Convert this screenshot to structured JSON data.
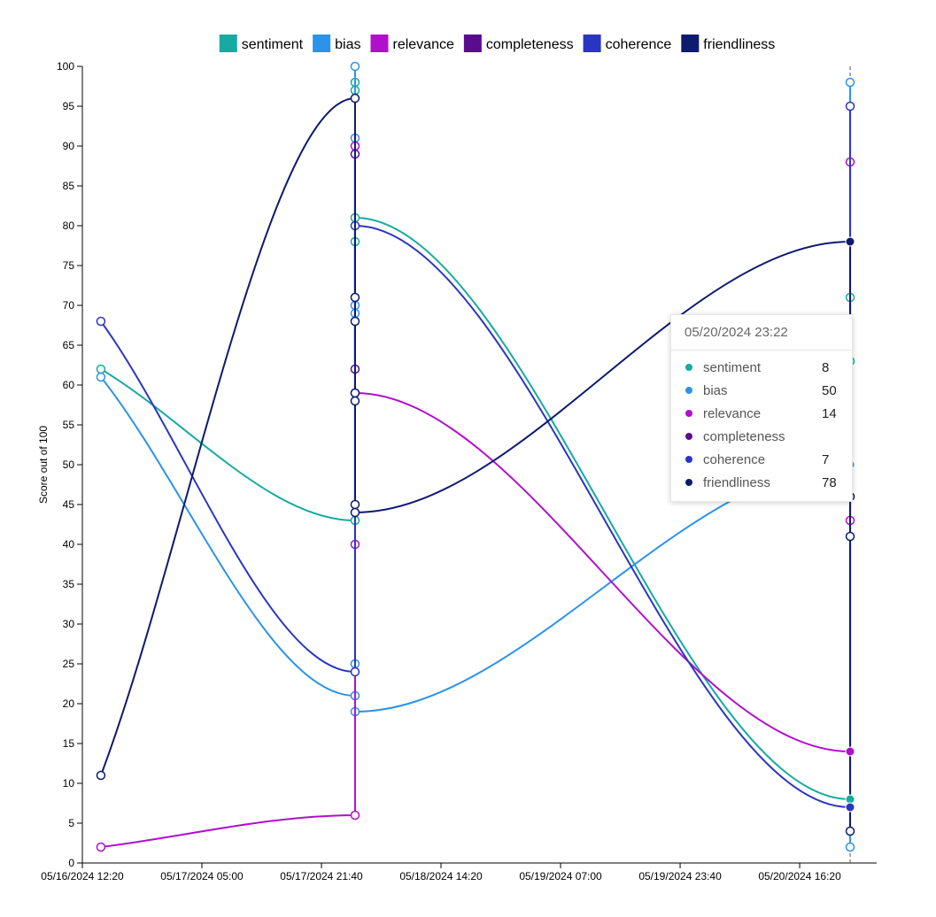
{
  "chart_data": {
    "type": "line",
    "y_label": "Score out of 100",
    "xlim": [
      "05/16/2024 12:20",
      "05/21/2024 03:04"
    ],
    "xticks": [
      "05/16/2024 12:20",
      "05/17/2024 05:00",
      "05/17/2024 21:40",
      "05/18/2024 14:20",
      "05/19/2024 07:00",
      "05/19/2024 23:40",
      "05/20/2024 16:20"
    ],
    "ylim": [
      0,
      100
    ],
    "yticks": [
      0,
      5,
      10,
      15,
      20,
      25,
      30,
      35,
      40,
      45,
      50,
      55,
      60,
      65,
      70,
      75,
      80,
      85,
      90,
      95,
      100
    ],
    "legend": "top",
    "series": [
      {
        "name": "sentiment",
        "color": "#17aaa0",
        "x": [
          "05/16/2024 14:55",
          "05/18/2024 02:21",
          "05/18/2024 02:21",
          "05/18/2024 02:21",
          "05/18/2024 02:21",
          "05/18/2024 02:21",
          "05/20/2024 23:22",
          "05/20/2024 23:22",
          "05/20/2024 23:22"
        ],
        "values": [
          62,
          43,
          78,
          97,
          98,
          81,
          8,
          71,
          63
        ]
      },
      {
        "name": "bias",
        "color": "#2b93ea",
        "x": [
          "05/16/2024 14:55",
          "05/18/2024 02:21",
          "05/18/2024 02:21",
          "05/18/2024 02:21",
          "05/18/2024 02:21",
          "05/18/2024 02:21",
          "05/18/2024 02:21",
          "05/18/2024 02:21",
          "05/20/2024 23:22",
          "05/20/2024 23:22",
          "05/20/2024 23:22"
        ],
        "values": [
          61,
          21,
          25,
          69,
          70,
          91,
          100,
          19,
          50,
          98,
          2
        ]
      },
      {
        "name": "relevance",
        "color": "#b10fcc",
        "x": [
          "05/16/2024 14:55",
          "05/18/2024 02:21",
          "05/18/2024 02:21",
          "05/18/2024 02:21",
          "05/18/2024 02:21",
          "05/20/2024 23:22",
          "05/20/2024 23:22",
          "05/20/2024 23:22"
        ],
        "values": [
          2,
          6,
          40,
          90,
          59,
          14,
          43,
          88
        ]
      },
      {
        "name": "completeness",
        "color": "#5a0c90",
        "x": [
          "05/18/2024 02:21",
          "05/18/2024 02:21"
        ],
        "values": [
          89,
          62
        ]
      },
      {
        "name": "coherence",
        "color": "#2a36c2",
        "x": [
          "05/16/2024 14:55",
          "05/18/2024 02:21",
          "05/18/2024 02:21",
          "05/20/2024 23:22",
          "05/20/2024 23:22"
        ],
        "values": [
          68,
          24,
          80,
          7,
          95
        ]
      },
      {
        "name": "friendliness",
        "color": "#0d1a70",
        "x": [
          "05/16/2024 14:55",
          "05/18/2024 02:21",
          "05/18/2024 02:21",
          "05/18/2024 02:21",
          "05/18/2024 02:21",
          "05/18/2024 02:21",
          "05/18/2024 02:21",
          "05/18/2024 02:21",
          "05/20/2024 23:22",
          "05/20/2024 23:22",
          "05/20/2024 23:22",
          "05/20/2024 23:22"
        ],
        "values": [
          11,
          96,
          71,
          68,
          59,
          58,
          45,
          44,
          78,
          46,
          41,
          4
        ]
      }
    ],
    "tooltip": {
      "values": [
        8,
        50,
        14,
        null,
        7,
        78
      ]
    }
  }
}
